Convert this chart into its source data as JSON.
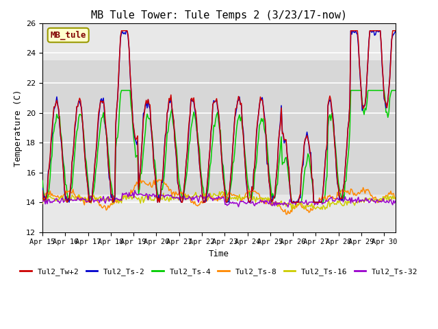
{
  "title": "MB Tule Tower: Tule Temps 2 (3/23/17-now)",
  "xlabel": "Time",
  "ylabel": "Temperature (C)",
  "ylim": [
    12,
    26
  ],
  "yticks": [
    12,
    14,
    16,
    18,
    20,
    22,
    24,
    26
  ],
  "xlim": [
    0,
    15.5
  ],
  "xtick_labels": [
    "Apr 15",
    "Apr 16",
    "Apr 17",
    "Apr 18",
    "Apr 19",
    "Apr 20",
    "Apr 21",
    "Apr 22",
    "Apr 23",
    "Apr 24",
    "Apr 25",
    "Apr 26",
    "Apr 27",
    "Apr 28",
    "Apr 29",
    "Apr 30"
  ],
  "xtick_positions": [
    0,
    1,
    2,
    3,
    4,
    5,
    6,
    7,
    8,
    9,
    10,
    11,
    12,
    13,
    14,
    15
  ],
  "series_colors": {
    "Tul2_Tw+2": "#cc0000",
    "Tul2_Ts-2": "#0000cc",
    "Tul2_Ts-4": "#00cc00",
    "Tul2_Ts-8": "#ff8800",
    "Tul2_Ts-16": "#cccc00",
    "Tul2_Ts-32": "#9900cc"
  },
  "shaded_region": [
    14.5,
    23.5
  ],
  "background_color": "#ffffff",
  "plot_bg_color": "#e8e8e8",
  "legend_label_box": {
    "text": "MB_tule",
    "bg": "#ffffcc",
    "edge": "#999900",
    "text_color": "#800000"
  },
  "grid_color": "#ffffff",
  "font_family": "monospace"
}
